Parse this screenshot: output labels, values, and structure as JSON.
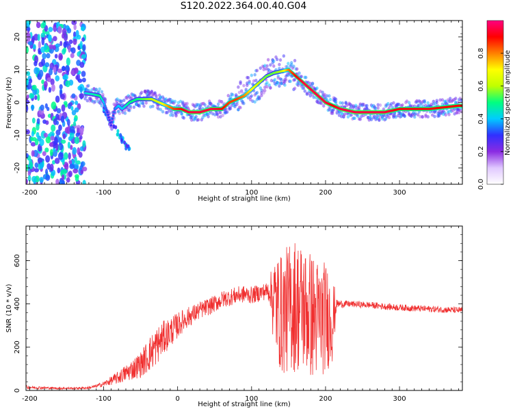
{
  "figure_title": "S120.2022.364.00.40.G04",
  "chart_data": [
    {
      "type": "heatmap",
      "title": "",
      "xlabel": "Height of straight line (km)",
      "ylabel": "Frequency (Hz)",
      "xlim": [
        -205,
        385
      ],
      "ylim": [
        -25,
        25
      ],
      "x_ticks": [
        -200,
        -100,
        0,
        100,
        200,
        300
      ],
      "y_ticks": [
        -20,
        -10,
        0,
        10,
        20
      ],
      "colorbar": {
        "label": "Normalized spectral amplitude",
        "range": [
          0,
          1
        ],
        "ticks": [
          0.0,
          0.2,
          0.4,
          0.6,
          0.8
        ],
        "colormap": [
          "#ffffff",
          "#e0c8ff",
          "#8a2be2",
          "#3030ff",
          "#00ccff",
          "#00ff80",
          "#c0ff00",
          "#ffff00",
          "#ff8000",
          "#ff0000",
          "#ff0080"
        ]
      },
      "ridge": {
        "x": [
          -195,
          -150,
          -130,
          -115,
          -105,
          -100,
          -95,
          -90,
          -85,
          -80,
          -75,
          -70,
          -65,
          -55,
          -45,
          -35,
          -25,
          -15,
          -5,
          5,
          15,
          30,
          45,
          60,
          70,
          80,
          90,
          100,
          110,
          120,
          130,
          140,
          150,
          160,
          170,
          180,
          190,
          200,
          210,
          220,
          240,
          260,
          280,
          300,
          320,
          340,
          360,
          380
        ],
        "y": [
          3,
          3,
          3,
          2.5,
          2,
          0,
          -3,
          -7,
          -2,
          -1,
          -2,
          -1,
          0,
          1,
          1,
          1,
          0,
          -1,
          -2,
          -2,
          -3,
          -3,
          -2,
          -2,
          0,
          1,
          2,
          4,
          6,
          8,
          9,
          9.5,
          10,
          8,
          6,
          4,
          2,
          0,
          -1,
          -2,
          -3,
          -3,
          -3,
          -2,
          -2,
          -2,
          -1.5,
          -1
        ],
        "amplitude": [
          0.3,
          0.35,
          0.4,
          0.45,
          0.5,
          0.4,
          0.3,
          0.3,
          0.35,
          0.4,
          0.4,
          0.45,
          0.5,
          0.5,
          0.55,
          0.6,
          0.65,
          0.75,
          0.85,
          0.9,
          0.95,
          0.95,
          0.95,
          0.9,
          0.85,
          0.85,
          0.8,
          0.7,
          0.6,
          0.55,
          0.55,
          0.6,
          0.8,
          0.9,
          0.95,
          0.95,
          0.95,
          0.95,
          0.9,
          0.95,
          0.95,
          0.95,
          0.95,
          0.9,
          0.9,
          0.9,
          0.9,
          0.9
        ]
      }
    },
    {
      "type": "line",
      "title": "",
      "xlabel": "Height of straight line (km)",
      "ylabel": "SNR (10 * v/v)",
      "xlim": [
        -205,
        385
      ],
      "ylim": [
        0,
        760
      ],
      "x_ticks": [
        -200,
        -100,
        0,
        100,
        200,
        300
      ],
      "y_ticks": [
        0,
        200,
        400,
        600
      ],
      "color": "#f03030",
      "series": [
        {
          "x": [
            -205,
            -180,
            -160,
            -140,
            -120,
            -110,
            -100,
            -90,
            -80,
            -70,
            -60,
            -50,
            -40,
            -30,
            -20,
            -10,
            0,
            10,
            20,
            30,
            40,
            50,
            60,
            70,
            80,
            90,
            100,
            110,
            120,
            125,
            130,
            140,
            150,
            160,
            170,
            180,
            190,
            200,
            210,
            215,
            230,
            260,
            290,
            320,
            350,
            385
          ],
          "y": [
            15,
            12,
            10,
            10,
            12,
            20,
            30,
            45,
            60,
            80,
            100,
            120,
            160,
            200,
            240,
            270,
            300,
            330,
            350,
            370,
            385,
            400,
            420,
            430,
            440,
            445,
            440,
            450,
            460,
            460,
            420,
            350,
            380,
            400,
            380,
            350,
            330,
            340,
            330,
            400,
            400,
            395,
            385,
            380,
            375,
            370
          ],
          "noise_amplitude": [
            8,
            6,
            5,
            5,
            6,
            8,
            12,
            20,
            30,
            40,
            50,
            60,
            80,
            90,
            80,
            70,
            60,
            50,
            45,
            40,
            40,
            40,
            40,
            40,
            40,
            40,
            40,
            40,
            40,
            60,
            230,
            280,
            300,
            320,
            300,
            300,
            280,
            260,
            200,
            20,
            15,
            15,
            15,
            15,
            15,
            15
          ]
        }
      ]
    }
  ]
}
